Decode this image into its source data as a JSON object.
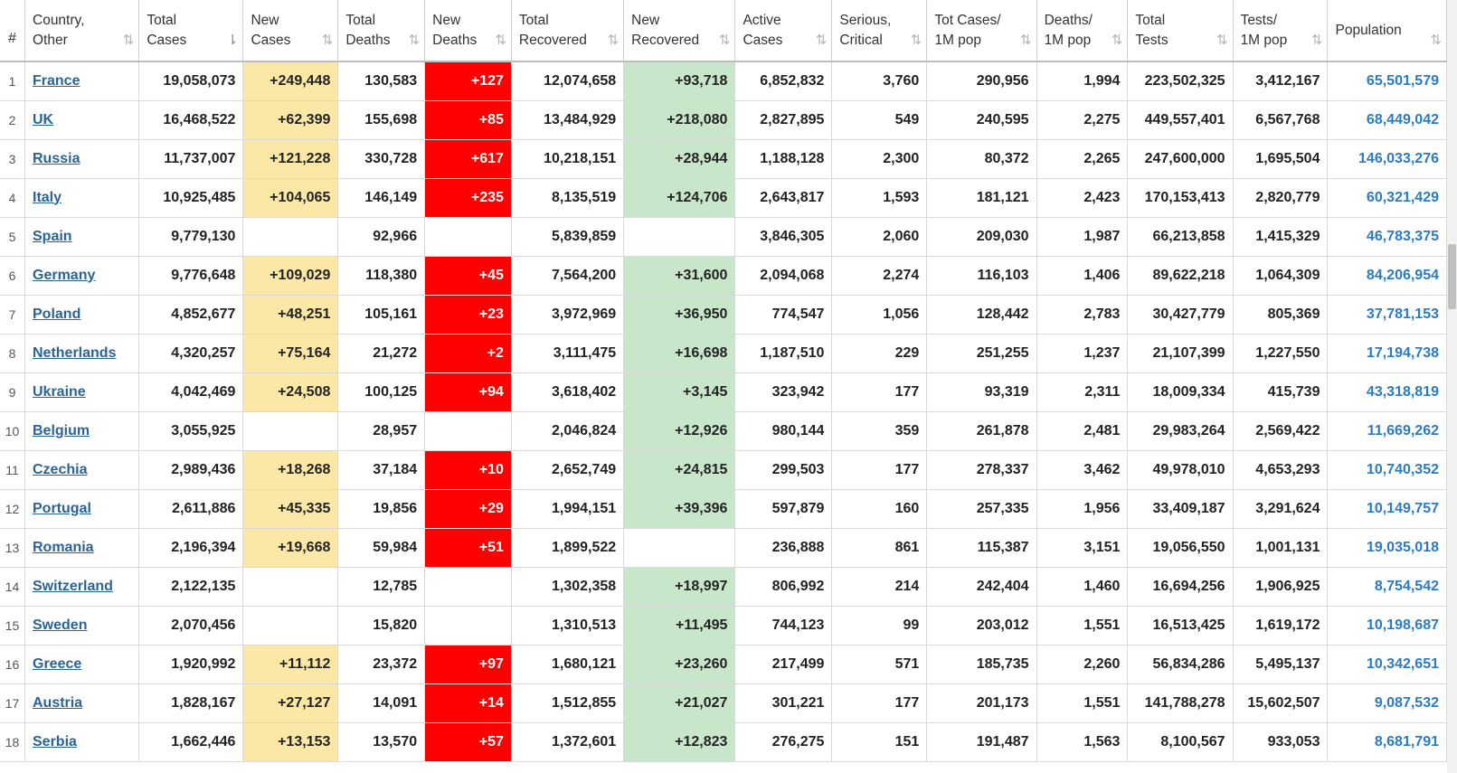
{
  "columns": [
    {
      "key": "idx",
      "label1": "#",
      "label2": "",
      "sort": "none"
    },
    {
      "key": "country",
      "label1": "Country,",
      "label2": "Other",
      "sort": "both"
    },
    {
      "key": "total_cases",
      "label1": "Total",
      "label2": "Cases",
      "sort": "desc"
    },
    {
      "key": "new_cases",
      "label1": "New",
      "label2": "Cases",
      "sort": "both"
    },
    {
      "key": "total_deaths",
      "label1": "Total",
      "label2": "Deaths",
      "sort": "both"
    },
    {
      "key": "new_deaths",
      "label1": "New",
      "label2": "Deaths",
      "sort": "both"
    },
    {
      "key": "total_recovered",
      "label1": "Total",
      "label2": "Recovered",
      "sort": "both"
    },
    {
      "key": "new_recovered",
      "label1": "New",
      "label2": "Recovered",
      "sort": "both"
    },
    {
      "key": "active_cases",
      "label1": "Active",
      "label2": "Cases",
      "sort": "both"
    },
    {
      "key": "serious",
      "label1": "Serious,",
      "label2": "Critical",
      "sort": "both"
    },
    {
      "key": "cases_per_m",
      "label1": "Tot Cases/",
      "label2": "1M pop",
      "sort": "both"
    },
    {
      "key": "deaths_per_m",
      "label1": "Deaths/",
      "label2": "1M pop",
      "sort": "both"
    },
    {
      "key": "total_tests",
      "label1": "Total",
      "label2": "Tests",
      "sort": "both"
    },
    {
      "key": "tests_per_m",
      "label1": "Tests/",
      "label2": "1M pop",
      "sort": "both"
    },
    {
      "key": "population",
      "label1": "Population",
      "label2": "",
      "sort": "both"
    }
  ],
  "sort_icons": {
    "both": "⇅",
    "desc": "⇂"
  },
  "colors": {
    "new_cases_bg": "#fbe8a6",
    "new_deaths_bg": "#ff0000",
    "new_recovered_bg": "#c8e6c9",
    "link": "#2a6496",
    "population": "#2a7bc4"
  },
  "rows": [
    {
      "idx": "1",
      "country": "France",
      "total_cases": "19,058,073",
      "new_cases": "+249,448",
      "total_deaths": "130,583",
      "new_deaths": "+127",
      "total_recovered": "12,074,658",
      "new_recovered": "+93,718",
      "active_cases": "6,852,832",
      "serious": "3,760",
      "cases_per_m": "290,956",
      "deaths_per_m": "1,994",
      "total_tests": "223,502,325",
      "tests_per_m": "3,412,167",
      "population": "65,501,579"
    },
    {
      "idx": "2",
      "country": "UK",
      "total_cases": "16,468,522",
      "new_cases": "+62,399",
      "total_deaths": "155,698",
      "new_deaths": "+85",
      "total_recovered": "13,484,929",
      "new_recovered": "+218,080",
      "active_cases": "2,827,895",
      "serious": "549",
      "cases_per_m": "240,595",
      "deaths_per_m": "2,275",
      "total_tests": "449,557,401",
      "tests_per_m": "6,567,768",
      "population": "68,449,042"
    },
    {
      "idx": "3",
      "country": "Russia",
      "total_cases": "11,737,007",
      "new_cases": "+121,228",
      "total_deaths": "330,728",
      "new_deaths": "+617",
      "total_recovered": "10,218,151",
      "new_recovered": "+28,944",
      "active_cases": "1,188,128",
      "serious": "2,300",
      "cases_per_m": "80,372",
      "deaths_per_m": "2,265",
      "total_tests": "247,600,000",
      "tests_per_m": "1,695,504",
      "population": "146,033,276"
    },
    {
      "idx": "4",
      "country": "Italy",
      "total_cases": "10,925,485",
      "new_cases": "+104,065",
      "total_deaths": "146,149",
      "new_deaths": "+235",
      "total_recovered": "8,135,519",
      "new_recovered": "+124,706",
      "active_cases": "2,643,817",
      "serious": "1,593",
      "cases_per_m": "181,121",
      "deaths_per_m": "2,423",
      "total_tests": "170,153,413",
      "tests_per_m": "2,820,779",
      "population": "60,321,429"
    },
    {
      "idx": "5",
      "country": "Spain",
      "total_cases": "9,779,130",
      "new_cases": "",
      "total_deaths": "92,966",
      "new_deaths": "",
      "total_recovered": "5,839,859",
      "new_recovered": "",
      "active_cases": "3,846,305",
      "serious": "2,060",
      "cases_per_m": "209,030",
      "deaths_per_m": "1,987",
      "total_tests": "66,213,858",
      "tests_per_m": "1,415,329",
      "population": "46,783,375"
    },
    {
      "idx": "6",
      "country": "Germany",
      "total_cases": "9,776,648",
      "new_cases": "+109,029",
      "total_deaths": "118,380",
      "new_deaths": "+45",
      "total_recovered": "7,564,200",
      "new_recovered": "+31,600",
      "active_cases": "2,094,068",
      "serious": "2,274",
      "cases_per_m": "116,103",
      "deaths_per_m": "1,406",
      "total_tests": "89,622,218",
      "tests_per_m": "1,064,309",
      "population": "84,206,954"
    },
    {
      "idx": "7",
      "country": "Poland",
      "total_cases": "4,852,677",
      "new_cases": "+48,251",
      "total_deaths": "105,161",
      "new_deaths": "+23",
      "total_recovered": "3,972,969",
      "new_recovered": "+36,950",
      "active_cases": "774,547",
      "serious": "1,056",
      "cases_per_m": "128,442",
      "deaths_per_m": "2,783",
      "total_tests": "30,427,779",
      "tests_per_m": "805,369",
      "population": "37,781,153"
    },
    {
      "idx": "8",
      "country": "Netherlands",
      "total_cases": "4,320,257",
      "new_cases": "+75,164",
      "total_deaths": "21,272",
      "new_deaths": "+2",
      "total_recovered": "3,111,475",
      "new_recovered": "+16,698",
      "active_cases": "1,187,510",
      "serious": "229",
      "cases_per_m": "251,255",
      "deaths_per_m": "1,237",
      "total_tests": "21,107,399",
      "tests_per_m": "1,227,550",
      "population": "17,194,738"
    },
    {
      "idx": "9",
      "country": "Ukraine",
      "total_cases": "4,042,469",
      "new_cases": "+24,508",
      "total_deaths": "100,125",
      "new_deaths": "+94",
      "total_recovered": "3,618,402",
      "new_recovered": "+3,145",
      "active_cases": "323,942",
      "serious": "177",
      "cases_per_m": "93,319",
      "deaths_per_m": "2,311",
      "total_tests": "18,009,334",
      "tests_per_m": "415,739",
      "population": "43,318,819"
    },
    {
      "idx": "10",
      "country": "Belgium",
      "total_cases": "3,055,925",
      "new_cases": "",
      "total_deaths": "28,957",
      "new_deaths": "",
      "total_recovered": "2,046,824",
      "new_recovered": "+12,926",
      "active_cases": "980,144",
      "serious": "359",
      "cases_per_m": "261,878",
      "deaths_per_m": "2,481",
      "total_tests": "29,983,264",
      "tests_per_m": "2,569,422",
      "population": "11,669,262"
    },
    {
      "idx": "11",
      "country": "Czechia",
      "total_cases": "2,989,436",
      "new_cases": "+18,268",
      "total_deaths": "37,184",
      "new_deaths": "+10",
      "total_recovered": "2,652,749",
      "new_recovered": "+24,815",
      "active_cases": "299,503",
      "serious": "177",
      "cases_per_m": "278,337",
      "deaths_per_m": "3,462",
      "total_tests": "49,978,010",
      "tests_per_m": "4,653,293",
      "population": "10,740,352"
    },
    {
      "idx": "12",
      "country": "Portugal",
      "total_cases": "2,611,886",
      "new_cases": "+45,335",
      "total_deaths": "19,856",
      "new_deaths": "+29",
      "total_recovered": "1,994,151",
      "new_recovered": "+39,396",
      "active_cases": "597,879",
      "serious": "160",
      "cases_per_m": "257,335",
      "deaths_per_m": "1,956",
      "total_tests": "33,409,187",
      "tests_per_m": "3,291,624",
      "population": "10,149,757"
    },
    {
      "idx": "13",
      "country": "Romania",
      "total_cases": "2,196,394",
      "new_cases": "+19,668",
      "total_deaths": "59,984",
      "new_deaths": "+51",
      "total_recovered": "1,899,522",
      "new_recovered": "",
      "active_cases": "236,888",
      "serious": "861",
      "cases_per_m": "115,387",
      "deaths_per_m": "3,151",
      "total_tests": "19,056,550",
      "tests_per_m": "1,001,131",
      "population": "19,035,018"
    },
    {
      "idx": "14",
      "country": "Switzerland",
      "total_cases": "2,122,135",
      "new_cases": "",
      "total_deaths": "12,785",
      "new_deaths": "",
      "total_recovered": "1,302,358",
      "new_recovered": "+18,997",
      "active_cases": "806,992",
      "serious": "214",
      "cases_per_m": "242,404",
      "deaths_per_m": "1,460",
      "total_tests": "16,694,256",
      "tests_per_m": "1,906,925",
      "population": "8,754,542"
    },
    {
      "idx": "15",
      "country": "Sweden",
      "total_cases": "2,070,456",
      "new_cases": "",
      "total_deaths": "15,820",
      "new_deaths": "",
      "total_recovered": "1,310,513",
      "new_recovered": "+11,495",
      "active_cases": "744,123",
      "serious": "99",
      "cases_per_m": "203,012",
      "deaths_per_m": "1,551",
      "total_tests": "16,513,425",
      "tests_per_m": "1,619,172",
      "population": "10,198,687"
    },
    {
      "idx": "16",
      "country": "Greece",
      "total_cases": "1,920,992",
      "new_cases": "+11,112",
      "total_deaths": "23,372",
      "new_deaths": "+97",
      "total_recovered": "1,680,121",
      "new_recovered": "+23,260",
      "active_cases": "217,499",
      "serious": "571",
      "cases_per_m": "185,735",
      "deaths_per_m": "2,260",
      "total_tests": "56,834,286",
      "tests_per_m": "5,495,137",
      "population": "10,342,651"
    },
    {
      "idx": "17",
      "country": "Austria",
      "total_cases": "1,828,167",
      "new_cases": "+27,127",
      "total_deaths": "14,091",
      "new_deaths": "+14",
      "total_recovered": "1,512,855",
      "new_recovered": "+21,027",
      "active_cases": "301,221",
      "serious": "177",
      "cases_per_m": "201,173",
      "deaths_per_m": "1,551",
      "total_tests": "141,788,278",
      "tests_per_m": "15,602,507",
      "population": "9,087,532"
    },
    {
      "idx": "18",
      "country": "Serbia",
      "total_cases": "1,662,446",
      "new_cases": "+13,153",
      "total_deaths": "13,570",
      "new_deaths": "+57",
      "total_recovered": "1,372,601",
      "new_recovered": "+12,823",
      "active_cases": "276,275",
      "serious": "151",
      "cases_per_m": "191,487",
      "deaths_per_m": "1,563",
      "total_tests": "8,100,567",
      "tests_per_m": "933,053",
      "population": "8,681,791"
    }
  ]
}
